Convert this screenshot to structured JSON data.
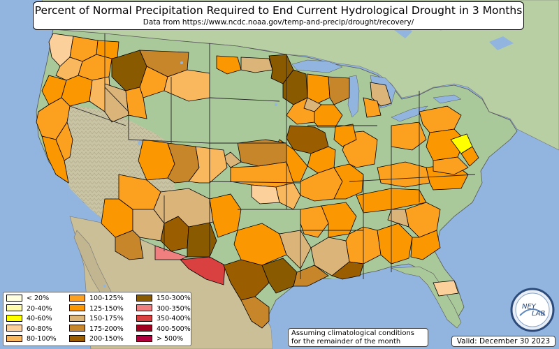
{
  "title": "Percent of Normal Precipitation Required to End Current Hydrological Drought in 3 Months",
  "subtitle": "Data from https://www.ncdc.noaa.gov/temp-and-precip/drought/recovery/",
  "legend": [
    {
      "label": "< 20%",
      "color": "#ffffe0"
    },
    {
      "label": "20-40%",
      "color": "#fffcae"
    },
    {
      "label": "40-60%",
      "color": "#ffff00"
    },
    {
      "label": "60-80%",
      "color": "#fcd09a"
    },
    {
      "label": "80-100%",
      "color": "#f9b75e"
    },
    {
      "label": "100-125%",
      "color": "#fca020"
    },
    {
      "label": "125-150%",
      "color": "#fb9700"
    },
    {
      "label": "150-175%",
      "color": "#dbb47a"
    },
    {
      "label": "175-200%",
      "color": "#c8862a"
    },
    {
      "label": "200-150%",
      "color": "#9a5e00"
    },
    {
      "label": "150-300%",
      "color": "#8a5a00"
    },
    {
      "label": "300-350%",
      "color": "#f08080"
    },
    {
      "label": "350-400%",
      "color": "#d94040"
    },
    {
      "label": "400-500%",
      "color": "#a00020"
    },
    {
      "label": "> 500%",
      "color": "#b00040"
    }
  ],
  "note_line1": "Assuming climatological conditions",
  "note_line2": "for the remainder of the month",
  "valid": "Valid: December 30 2023",
  "logo_text_left": "NEY",
  "logo_text_right": "LAB",
  "colors": {
    "ocean": "#92b5e0",
    "land_green": "#aac99a",
    "land_desert": "#d8cdb0",
    "land_mexico": "#cbbf98",
    "state_border": "#000000"
  }
}
